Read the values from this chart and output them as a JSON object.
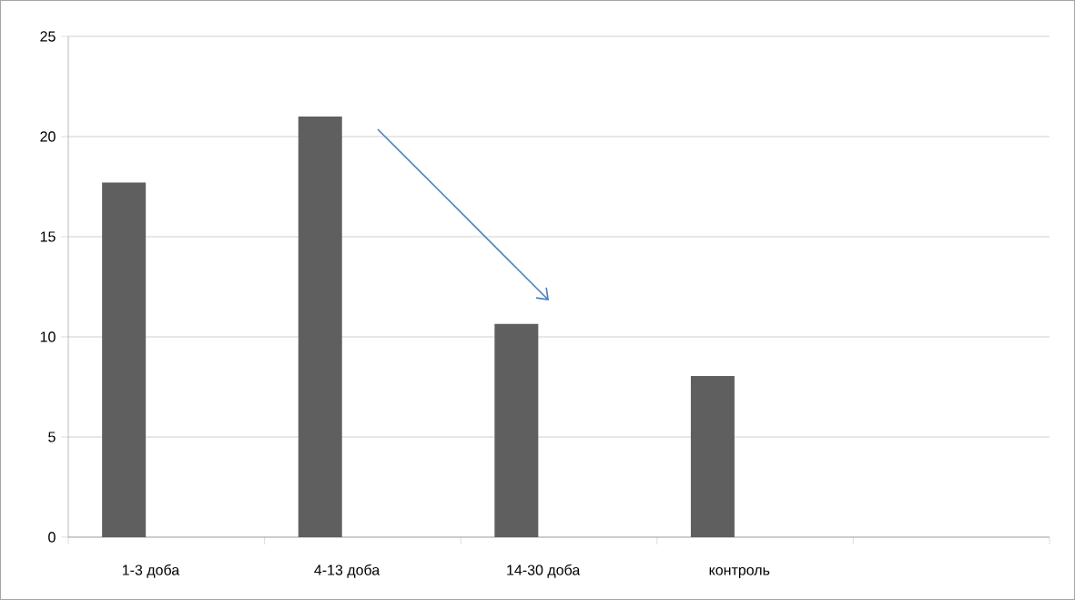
{
  "chart_data": {
    "type": "bar",
    "categories": [
      "1-3 доба",
      "4-13 доба",
      "14-30 доба",
      "контроль",
      null
    ],
    "values": [
      17.7,
      21,
      10.65,
      8.05,
      null
    ],
    "color": "#5f5f5f",
    "ylim": [
      0,
      25
    ],
    "yticks": [
      0,
      5,
      10,
      15,
      20,
      25
    ],
    "grid": "y"
  }
}
